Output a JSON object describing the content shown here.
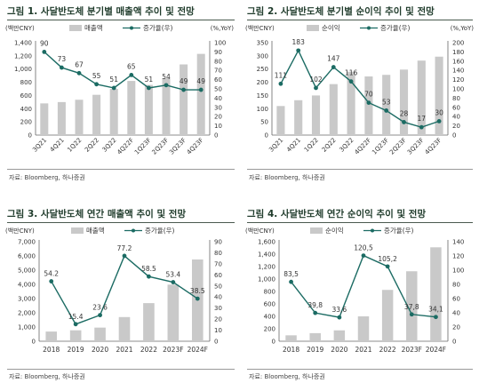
{
  "colors": {
    "bar": "#c9c9c9",
    "line": "#1b6b63",
    "title": "#1f3b2b",
    "axis": "#555555"
  },
  "chart_data": [
    {
      "type": "bar+line",
      "title": "그림 1. 사달반도체 분기별 매출액 추이 및 전망",
      "left_unit": "(백만CNY)",
      "right_unit": "(%,YoY)",
      "categories": [
        "3Q21",
        "4Q21",
        "1Q22",
        "2Q22",
        "3Q22",
        "4Q22F",
        "1Q23F",
        "2Q23F",
        "3Q23F",
        "4Q23F"
      ],
      "bar_series": {
        "name": "매출액",
        "values": [
          480,
          500,
          535,
          610,
          700,
          820,
          760,
          860,
          1070,
          1230
        ]
      },
      "line_series": {
        "name": "증가율(우)",
        "values": [
          90,
          73,
          67,
          55,
          51,
          65,
          51,
          54,
          49,
          49
        ]
      },
      "left_ticks": [
        "0",
        "200",
        "400",
        "600",
        "800",
        "1,000",
        "1,200",
        "1,400"
      ],
      "right_ticks": [
        "0",
        "10",
        "20",
        "30",
        "40",
        "50",
        "60",
        "70",
        "80",
        "90",
        "100"
      ],
      "left_max": 1400,
      "right_max": 100,
      "source": "자료: Bloomberg, 하나증권"
    },
    {
      "type": "bar+line",
      "title": "그림 2. 사달반도체 분기별 순이익 추이 및 전망",
      "left_unit": "(백만CNY)",
      "right_unit": "(%,YoY)",
      "categories": [
        "3Q21",
        "4Q21",
        "1Q22",
        "2Q22",
        "3Q22",
        "4Q22F",
        "1Q23F",
        "2Q23F",
        "3Q23F",
        "4Q23F"
      ],
      "bar_series": {
        "name": "순이익",
        "values": [
          110,
          132,
          150,
          193,
          240,
          222,
          228,
          248,
          282,
          297
        ]
      },
      "line_series": {
        "name": "증가율(우)",
        "values": [
          111,
          183,
          102,
          147,
          116,
          70,
          53,
          28,
          17,
          30
        ]
      },
      "left_ticks": [
        "0",
        "50",
        "100",
        "150",
        "200",
        "250",
        "300",
        "350"
      ],
      "right_ticks": [
        "0",
        "20",
        "40",
        "60",
        "80",
        "100",
        "120",
        "140",
        "160",
        "180",
        "200"
      ],
      "left_max": 350,
      "right_max": 200,
      "source": "자료: Bloomberg, 하나증권"
    },
    {
      "type": "bar+line",
      "title": "그림 3. 사달반도체 연간 매출액 추이 및 전망",
      "left_unit": "(백만CNY)",
      "right_unit": "",
      "categories": [
        "2018",
        "2019",
        "2020",
        "2021",
        "2022",
        "2023F",
        "2024F"
      ],
      "bar_series": {
        "name": "매출액",
        "values": [
          680,
          770,
          960,
          1700,
          2680,
          3980,
          5750
        ]
      },
      "line_series": {
        "name": "증가율(우)",
        "values": [
          54.2,
          15.4,
          23.6,
          77.2,
          58.5,
          53.4,
          38.5
        ]
      },
      "point_labels": [
        "54.2",
        "15.4",
        "23.6",
        "77.2",
        "58.5",
        "53.4",
        "38.5"
      ],
      "left_ticks": [
        "0",
        "1,000",
        "2,000",
        "3,000",
        "4,000",
        "5,000",
        "6,000",
        "7,000"
      ],
      "right_ticks": [
        "0",
        "10",
        "20",
        "30",
        "40",
        "50",
        "60",
        "70",
        "80",
        "90"
      ],
      "left_max": 7000,
      "right_max": 90,
      "source": "자료: Bloomberg, 하나증권"
    },
    {
      "type": "bar+line",
      "title": "그림 4. 사달반도체 연간 순이익 추이 및 전망",
      "left_unit": "(백만CNY)",
      "right_unit": "",
      "categories": [
        "2018",
        "2019",
        "2020",
        "2021",
        "2022",
        "2023F",
        "2024F"
      ],
      "bar_series": {
        "name": "순이익",
        "values": [
          95,
          130,
          175,
          400,
          825,
          1125,
          1510
        ]
      },
      "line_series": {
        "name": "증가율(우)",
        "values": [
          83.5,
          39.8,
          33.6,
          120.5,
          105.2,
          37.8,
          34.1
        ]
      },
      "point_labels": [
        "83,5",
        "39,8",
        "33,6",
        "120,5",
        "105,2",
        "37,8",
        "34,1"
      ],
      "left_ticks": [
        "0",
        "200",
        "400",
        "600",
        "800",
        "1,000",
        "1,200",
        "1,400",
        "1,600"
      ],
      "right_ticks": [
        "0",
        "20",
        "40",
        "60",
        "80",
        "100",
        "120",
        "140"
      ],
      "left_max": 1600,
      "right_max": 140,
      "source": "자료: Bloomberg, 하나증권"
    }
  ]
}
